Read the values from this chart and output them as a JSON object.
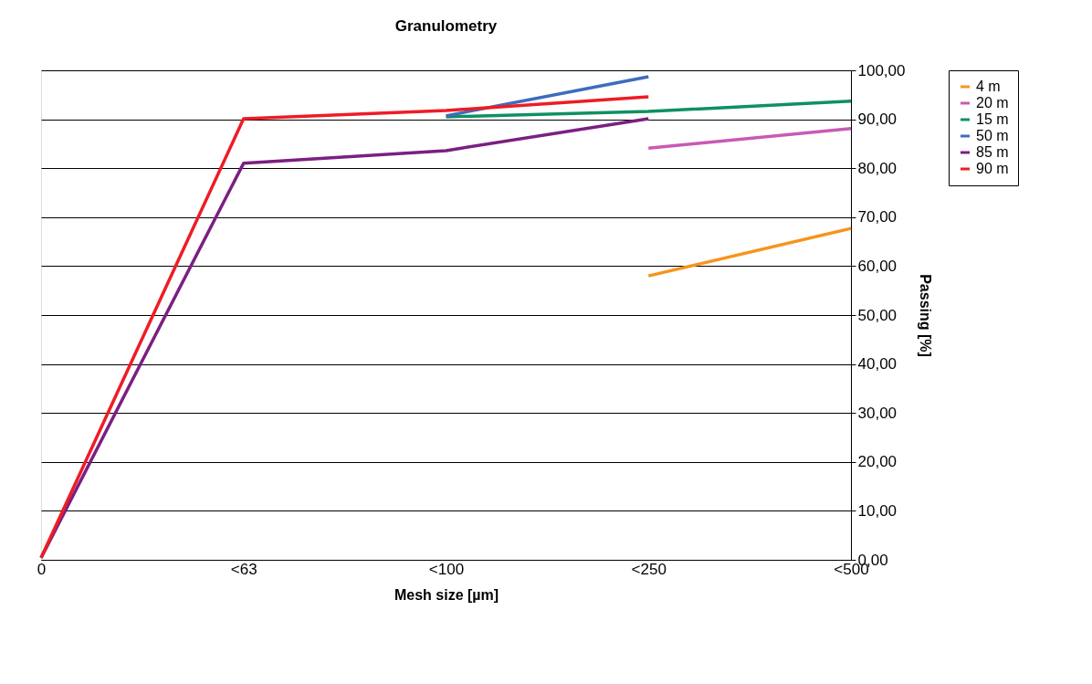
{
  "chart_data": {
    "type": "line",
    "title": "Granulometry",
    "xlabel": "Mesh size [µm]",
    "ylabel": "Passing [%]",
    "categories": [
      "0",
      "<63",
      "<100",
      "<250",
      "<500"
    ],
    "ylim": [
      0,
      100
    ],
    "yticks": [
      {
        "value": 0,
        "label": "0,00"
      },
      {
        "value": 10,
        "label": "10,00"
      },
      {
        "value": 20,
        "label": "20,00"
      },
      {
        "value": 30,
        "label": "30,00"
      },
      {
        "value": 40,
        "label": "40,00"
      },
      {
        "value": 50,
        "label": "50,00"
      },
      {
        "value": 60,
        "label": "60,00"
      },
      {
        "value": 70,
        "label": "70,00"
      },
      {
        "value": 80,
        "label": "80,00"
      },
      {
        "value": 90,
        "label": "90,00"
      },
      {
        "value": 100,
        "label": "100,00"
      }
    ],
    "grid": "y",
    "legend": "right",
    "marker": "none",
    "line_style": "solid",
    "series": [
      {
        "name": "4 m",
        "color": "#f7941d",
        "values": [
          null,
          null,
          null,
          58.0,
          67.7
        ]
      },
      {
        "name": "20 m",
        "color": "#c85ab4",
        "values": [
          null,
          null,
          null,
          84.1,
          88.1
        ]
      },
      {
        "name": "15 m",
        "color": "#109060",
        "values": [
          null,
          null,
          90.5,
          91.6,
          93.7
        ]
      },
      {
        "name": "50 m",
        "color": "#3e6cbc",
        "values": [
          null,
          null,
          90.7,
          98.7,
          null
        ]
      },
      {
        "name": "85 m",
        "color": "#7b1f82",
        "values": [
          0.4,
          81.0,
          83.6,
          90.1,
          null
        ]
      },
      {
        "name": "90 m",
        "color": "#ee1c25",
        "values": [
          0.4,
          90.1,
          91.8,
          94.6,
          null
        ]
      }
    ]
  }
}
